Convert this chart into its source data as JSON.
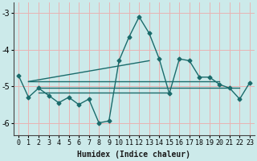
{
  "title": "",
  "xlabel": "Humidex (Indice chaleur)",
  "ylabel": "",
  "bg_color": "#cceaea",
  "grid_color": "#e8b4b4",
  "line_color": "#1a6b6b",
  "xlim": [
    -0.5,
    23.5
  ],
  "ylim": [
    -6.35,
    -2.7
  ],
  "yticks": [
    -6,
    -5,
    -4,
    -3
  ],
  "xtick_labels": [
    "0",
    "1",
    "2",
    "3",
    "4",
    "5",
    "6",
    "7",
    "8",
    "9",
    "10",
    "11",
    "12",
    "13",
    "14",
    "15",
    "16",
    "17",
    "18",
    "19",
    "20",
    "21",
    "22",
    "23"
  ],
  "main_line_x": [
    0,
    1,
    2,
    3,
    4,
    5,
    6,
    7,
    8,
    9,
    10,
    11,
    12,
    13,
    14,
    15,
    16,
    17,
    18,
    19,
    20,
    21,
    22,
    23
  ],
  "main_line_y": [
    -4.7,
    -5.3,
    -5.05,
    -5.25,
    -5.45,
    -5.3,
    -5.5,
    -5.35,
    -6.0,
    -5.95,
    -4.3,
    -3.65,
    -3.1,
    -3.55,
    -4.25,
    -5.2,
    -4.25,
    -4.3,
    -4.75,
    -4.75,
    -4.95,
    -5.05,
    -5.35,
    -4.9
  ],
  "stat_line1_x": [
    1,
    20
  ],
  "stat_line1_y": [
    -4.87,
    -4.87
  ],
  "stat_line2_x": [
    2,
    22
  ],
  "stat_line2_y": [
    -5.05,
    -5.05
  ],
  "stat_line3_x": [
    2,
    15
  ],
  "stat_line3_y": [
    -5.18,
    -5.18
  ],
  "diag_line_x": [
    1,
    13
  ],
  "diag_line_y": [
    -4.87,
    -4.3
  ],
  "marker_size": 2.5,
  "line_width": 1.0,
  "xlabel_fontsize": 7,
  "tick_fontsize": 6
}
